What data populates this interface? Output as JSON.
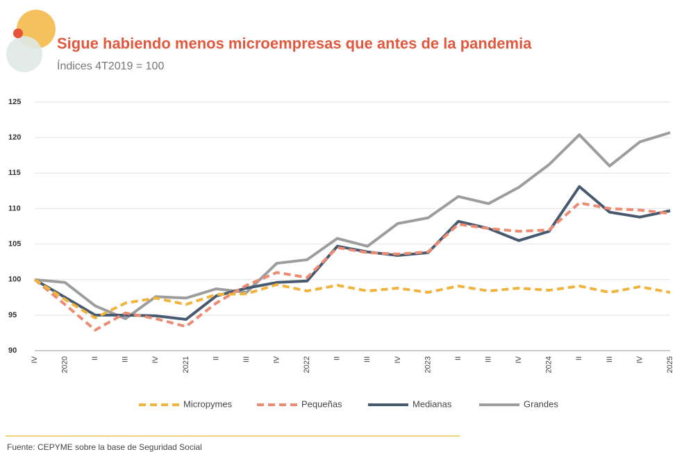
{
  "chart_data": {
    "type": "line",
    "title": "Sigue habiendo menos microempresas que antes de la pandemia",
    "subtitle": "Índices 4T2019 = 100",
    "source": "Fuente: CEPYME sobre la base de Seguridad Social",
    "categories": [
      "IV",
      "2020",
      "II",
      "III",
      "IV",
      "2021",
      "II",
      "III",
      "IV",
      "2022",
      "II",
      "III",
      "IV",
      "2023",
      "II",
      "III",
      "IV",
      "2024",
      "II",
      "III",
      "IV",
      "2025"
    ],
    "ylim": [
      90,
      125
    ],
    "yticks": [
      90,
      95,
      100,
      105,
      110,
      115,
      120,
      125
    ],
    "grid": true,
    "legend": "bottom",
    "series": [
      {
        "name": "Micropymes",
        "color": "#f0b43c",
        "dashed": true,
        "values": [
          100,
          97.2,
          94.6,
          96.7,
          97.4,
          96.5,
          97.9,
          98,
          99.3,
          98.4,
          99.2,
          98.4,
          98.8,
          98.2,
          99.1,
          98.4,
          98.8,
          98.5,
          99.1,
          98.2,
          99,
          98.2
        ]
      },
      {
        "name": "Pequeñas",
        "color": "#ec8a72",
        "dashed": true,
        "values": [
          100,
          96.5,
          92.9,
          95.3,
          94.5,
          93.4,
          96.7,
          99.2,
          101,
          100.3,
          104.5,
          103.8,
          103.6,
          103.9,
          107.8,
          107.2,
          106.8,
          107,
          110.8,
          110,
          109.8,
          109.3
        ]
      },
      {
        "name": "Medianas",
        "color": "#475a70",
        "dashed": false,
        "values": [
          100,
          97.5,
          95,
          95,
          94.9,
          94.4,
          97.7,
          98.8,
          99.6,
          99.8,
          104.7,
          103.9,
          103.4,
          103.8,
          108.2,
          107.2,
          105.5,
          106.8,
          113.1,
          109.5,
          108.8,
          109.7
        ]
      },
      {
        "name": "Grandes",
        "color": "#9d9d9d",
        "dashed": false,
        "values": [
          100,
          99.6,
          96.3,
          94.5,
          97.6,
          97.4,
          98.7,
          98.2,
          102.3,
          102.8,
          105.8,
          104.7,
          107.9,
          108.7,
          111.7,
          110.7,
          113,
          116.2,
          120.4,
          116,
          119.4,
          120.7
        ]
      }
    ]
  }
}
